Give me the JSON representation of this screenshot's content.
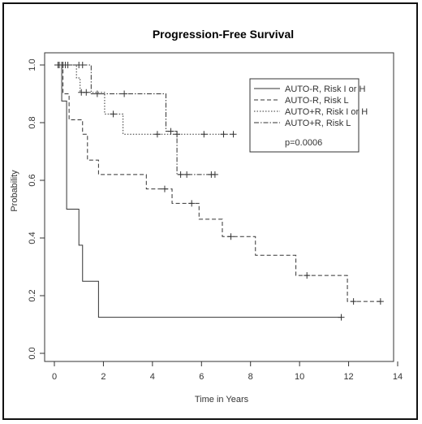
{
  "chart_data": {
    "type": "line",
    "title": "Progression-Free Survival",
    "xlabel": "Time in Years",
    "ylabel": "Probability",
    "xlim": [
      0,
      14
    ],
    "ylim": [
      0,
      1
    ],
    "xticks": [
      0,
      2,
      4,
      6,
      8,
      10,
      12,
      14
    ],
    "yticks": [
      0.0,
      0.2,
      0.4,
      0.6,
      0.8,
      1.0
    ],
    "ytick_labels": [
      "0.0",
      "0.2",
      "0.4",
      "0.6",
      "0.8",
      "1.0"
    ],
    "grid": false,
    "legend_position": "top-right",
    "annotation": "p=0.0006",
    "series": [
      {
        "name": "AUTO-R, Risk I or H",
        "dash": "solid",
        "steps": [
          [
            0,
            1.0
          ],
          [
            0.3,
            0.875
          ],
          [
            0.5,
            0.5
          ],
          [
            1.0,
            0.375
          ],
          [
            1.15,
            0.25
          ],
          [
            1.8,
            0.125
          ],
          [
            11.7,
            0.125
          ]
        ],
        "censored": [
          [
            11.7,
            0.125
          ]
        ]
      },
      {
        "name": "AUTO-R, Risk L",
        "dash": "dashed",
        "steps": [
          [
            0,
            1.0
          ],
          [
            0.35,
            0.9
          ],
          [
            0.6,
            0.81
          ],
          [
            1.15,
            0.76
          ],
          [
            1.35,
            0.67
          ],
          [
            1.8,
            0.62
          ],
          [
            3.75,
            0.57
          ],
          [
            4.8,
            0.52
          ],
          [
            5.9,
            0.465
          ],
          [
            6.85,
            0.405
          ],
          [
            8.2,
            0.34
          ],
          [
            9.85,
            0.27
          ],
          [
            11.95,
            0.18
          ],
          [
            13.3,
            0.18
          ]
        ],
        "censored": [
          [
            0.2,
            1.0
          ],
          [
            0.35,
            1.0
          ],
          [
            4.5,
            0.57
          ],
          [
            5.6,
            0.52
          ],
          [
            7.2,
            0.405
          ],
          [
            10.3,
            0.27
          ],
          [
            12.2,
            0.18
          ],
          [
            13.3,
            0.18
          ]
        ]
      },
      {
        "name": "AUTO+R, Risk I or H",
        "dash": "dotted",
        "steps": [
          [
            0,
            1.0
          ],
          [
            0.9,
            0.955
          ],
          [
            1.05,
            0.905
          ],
          [
            2.05,
            0.83
          ],
          [
            2.8,
            0.76
          ],
          [
            7.3,
            0.76
          ]
        ],
        "censored": [
          [
            0.15,
            1.0
          ],
          [
            0.45,
            1.0
          ],
          [
            1.0,
            1.0
          ],
          [
            1.1,
            0.905
          ],
          [
            1.3,
            0.905
          ],
          [
            2.4,
            0.83
          ],
          [
            4.2,
            0.76
          ],
          [
            5.0,
            0.76
          ],
          [
            6.1,
            0.76
          ],
          [
            6.9,
            0.76
          ],
          [
            7.3,
            0.76
          ]
        ]
      },
      {
        "name": "AUTO+R, Risk L",
        "dash": "dashdot",
        "steps": [
          [
            0,
            1.0
          ],
          [
            1.5,
            0.9
          ],
          [
            4.55,
            0.77
          ],
          [
            5.0,
            0.62
          ],
          [
            6.5,
            0.62
          ]
        ],
        "censored": [
          [
            0.3,
            1.0
          ],
          [
            0.55,
            1.0
          ],
          [
            1.15,
            1.0
          ],
          [
            1.75,
            0.9
          ],
          [
            2.85,
            0.9
          ],
          [
            4.75,
            0.77
          ],
          [
            5.15,
            0.62
          ],
          [
            5.4,
            0.62
          ],
          [
            6.4,
            0.62
          ],
          [
            6.55,
            0.62
          ]
        ]
      }
    ]
  }
}
